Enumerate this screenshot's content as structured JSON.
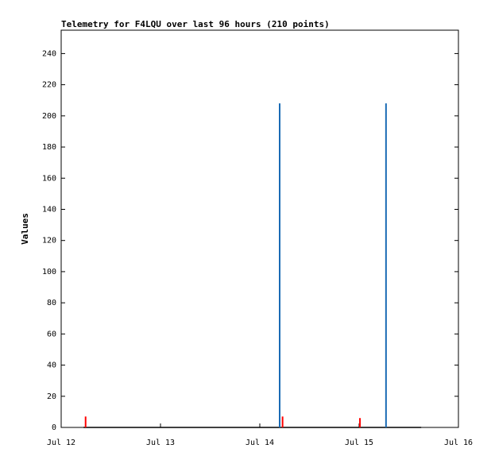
{
  "chart_data": {
    "type": "line",
    "title": "Telemetry for F4LQU over last 96 hours (210 points)",
    "y_label": "Values",
    "xlim": [
      0,
      96
    ],
    "xticks": [
      {
        "value": 0,
        "label": "Jul 12"
      },
      {
        "value": 24,
        "label": "Jul 13"
      },
      {
        "value": 48,
        "label": "Jul 14"
      },
      {
        "value": 72,
        "label": "Jul 15"
      },
      {
        "value": 96,
        "label": "Jul 16"
      }
    ],
    "ylim": [
      0,
      255
    ],
    "yticks": [
      0,
      20,
      40,
      60,
      80,
      100,
      120,
      140,
      160,
      180,
      200,
      220,
      240
    ],
    "series": [
      {
        "color": "#000000",
        "style": "line",
        "x": [
          5.4,
          87
        ],
        "values": [
          0,
          0
        ]
      },
      {
        "color": "#ff0000",
        "style": "impulse",
        "x": [
          5.9,
          53.5,
          72.2
        ],
        "values": [
          7,
          7,
          6
        ]
      },
      {
        "color": "#1a6bb5",
        "style": "impulse",
        "x": [
          52.8,
          78.5
        ],
        "values": [
          208,
          208
        ]
      }
    ]
  }
}
